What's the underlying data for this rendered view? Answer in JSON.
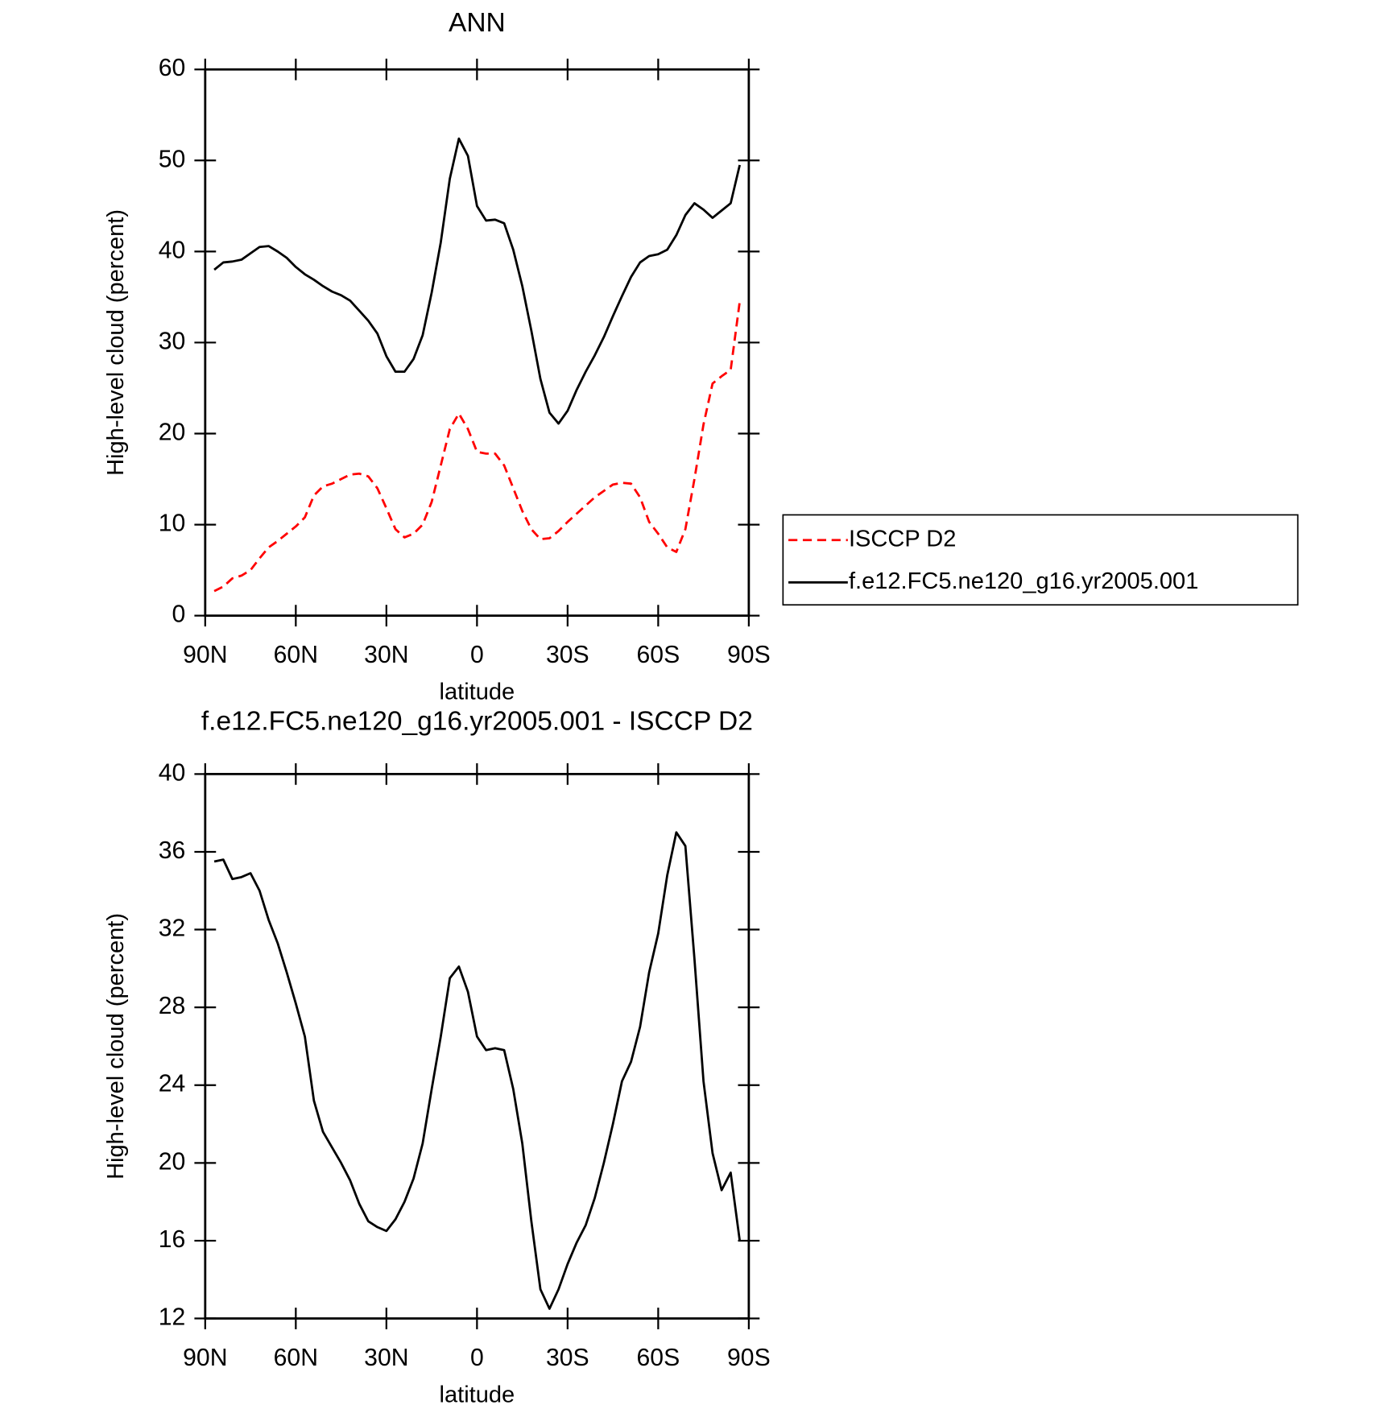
{
  "chart_data": [
    {
      "type": "line",
      "title": "ANN",
      "xlabel": "latitude",
      "ylabel": "High-level cloud (percent)",
      "x": [
        87,
        84,
        81,
        78,
        75,
        72,
        69,
        66,
        63,
        60,
        57,
        54,
        51,
        48,
        45,
        42,
        39,
        36,
        33,
        30,
        27,
        24,
        21,
        18,
        15,
        12,
        9,
        6,
        3,
        0,
        -3,
        -6,
        -9,
        -12,
        -15,
        -18,
        -21,
        -24,
        -27,
        -30,
        -33,
        -36,
        -39,
        -42,
        -45,
        -48,
        -51,
        -54,
        -57,
        -60,
        -63,
        -66,
        -69,
        -72,
        -75,
        -78,
        -81,
        -84,
        -87
      ],
      "series": [
        {
          "name": "ISCCP D2",
          "color": "#ff0000",
          "dashed": true,
          "values": [
            2.7,
            3.2,
            4.1,
            4.4,
            5.0,
            6.3,
            7.5,
            8.2,
            9.0,
            9.8,
            10.8,
            13.2,
            14.2,
            14.5,
            15.0,
            15.5,
            15.6,
            15.3,
            14.0,
            11.8,
            9.5,
            8.6,
            9.0,
            10.0,
            12.5,
            16.5,
            20.5,
            22.2,
            20.5,
            18.0,
            17.8,
            17.8,
            16.5,
            14.0,
            11.5,
            9.5,
            8.4,
            8.5,
            9.3,
            10.3,
            11.2,
            12.1,
            13.0,
            13.7,
            14.4,
            14.6,
            14.5,
            13.0,
            10.3,
            9.0,
            7.5,
            7.0,
            9.5,
            15.0,
            21.0,
            25.5,
            26.3,
            27.0,
            34.5
          ]
        },
        {
          "name": "f.e12.FC5.ne120_g16.yr2005.001",
          "color": "#000000",
          "dashed": false,
          "values": [
            38.0,
            38.8,
            38.9,
            39.1,
            39.8,
            40.5,
            40.6,
            40.0,
            39.3,
            38.3,
            37.5,
            36.9,
            36.2,
            35.6,
            35.2,
            34.6,
            33.5,
            32.4,
            31.0,
            28.5,
            26.8,
            26.8,
            28.2,
            30.8,
            35.5,
            41.0,
            48.0,
            52.4,
            50.5,
            45.0,
            43.4,
            43.5,
            43.1,
            40.2,
            36.2,
            31.3,
            26.0,
            22.3,
            21.1,
            22.5,
            24.8,
            26.8,
            28.6,
            30.6,
            32.9,
            35.1,
            37.2,
            38.8,
            39.5,
            39.7,
            40.2,
            41.8,
            44.0,
            45.3,
            44.6,
            43.7,
            44.5,
            45.3,
            49.5
          ]
        }
      ],
      "xlim": [
        90,
        -90
      ],
      "xticks": [
        {
          "value": 90,
          "label": "90N"
        },
        {
          "value": 60,
          "label": "60N"
        },
        {
          "value": 30,
          "label": "30N"
        },
        0,
        {
          "value": -30,
          "label": "30S"
        },
        {
          "value": -60,
          "label": "60S"
        },
        {
          "value": -90,
          "label": "90S"
        }
      ],
      "ylim": [
        0,
        60
      ],
      "yticks": [
        0,
        10,
        20,
        30,
        40,
        50,
        60
      ],
      "legend": "right"
    },
    {
      "type": "line",
      "title": "f.e12.FC5.ne120_g16.yr2005.001 - ISCCP D2",
      "xlabel": "latitude",
      "ylabel": "High-level cloud (percent)",
      "x": [
        87,
        84,
        81,
        78,
        75,
        72,
        69,
        66,
        63,
        60,
        57,
        54,
        51,
        48,
        45,
        42,
        39,
        36,
        33,
        30,
        27,
        24,
        21,
        18,
        15,
        12,
        9,
        6,
        3,
        0,
        -3,
        -6,
        -9,
        -12,
        -15,
        -18,
        -21,
        -24,
        -27,
        -30,
        -33,
        -36,
        -39,
        -42,
        -45,
        -48,
        -51,
        -54,
        -57,
        -60,
        -63,
        -66,
        -69,
        -72,
        -75,
        -78,
        -81,
        -84,
        -87
      ],
      "series": [
        {
          "color": "#000000",
          "dashed": false,
          "values": [
            35.5,
            35.6,
            34.6,
            34.7,
            34.9,
            34.0,
            32.5,
            31.3,
            29.8,
            28.2,
            26.5,
            23.2,
            21.6,
            20.8,
            20.0,
            19.1,
            17.9,
            17.0,
            16.7,
            16.5,
            17.1,
            18.0,
            19.2,
            21.0,
            23.8,
            26.5,
            29.5,
            30.1,
            28.8,
            26.5,
            25.8,
            25.9,
            25.8,
            23.8,
            21.0,
            17.0,
            13.5,
            12.5,
            13.5,
            14.8,
            15.9,
            16.8,
            18.2,
            20.0,
            22.0,
            24.2,
            25.2,
            27.0,
            29.8,
            31.8,
            34.8,
            37.0,
            36.3,
            30.5,
            24.2,
            20.5,
            18.6,
            19.5,
            16.0
          ]
        }
      ],
      "xlim": [
        90,
        -90
      ],
      "xticks": [
        {
          "value": 90,
          "label": "90N"
        },
        {
          "value": 60,
          "label": "60N"
        },
        {
          "value": 30,
          "label": "30N"
        },
        0,
        {
          "value": -30,
          "label": "30S"
        },
        {
          "value": -60,
          "label": "60S"
        },
        {
          "value": -90,
          "label": "90S"
        }
      ],
      "ylim": [
        12,
        40
      ],
      "yticks": [
        12,
        16,
        20,
        24,
        28,
        32,
        36,
        40
      ]
    }
  ]
}
